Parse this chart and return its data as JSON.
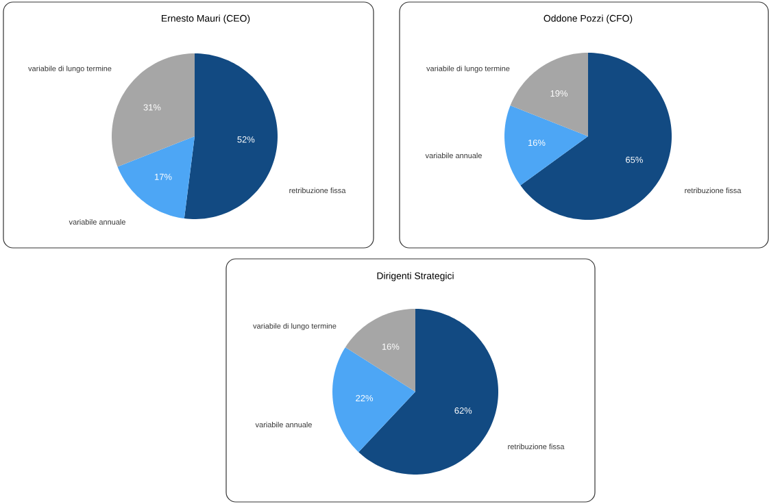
{
  "chart_data": [
    {
      "type": "pie",
      "title": "Ernesto Mauri (CEO)",
      "categories": [
        "retribuzione fissa",
        "variabile annuale",
        "variabile di lungo termine"
      ],
      "values": [
        52,
        17,
        31
      ],
      "colors": [
        "#124a82",
        "#4da6f5",
        "#a6a6a6"
      ],
      "value_labels": [
        "52%",
        "17%",
        "31%"
      ]
    },
    {
      "type": "pie",
      "title": "Oddone Pozzi (CFO)",
      "categories": [
        "retribuzione fissa",
        "variabile annuale",
        "variabile di lungo termine"
      ],
      "values": [
        65,
        16,
        19
      ],
      "colors": [
        "#124a82",
        "#4da6f5",
        "#a6a6a6"
      ],
      "value_labels": [
        "65%",
        "16%",
        "19%"
      ]
    },
    {
      "type": "pie",
      "title": "Dirigenti Strategici",
      "categories": [
        "retribuzione fissa",
        "variabile annuale",
        "variabile di lungo termine"
      ],
      "values": [
        62,
        22,
        16
      ],
      "colors": [
        "#124a82",
        "#4da6f5",
        "#a6a6a6"
      ],
      "value_labels": [
        "62%",
        "22%",
        "16%"
      ]
    }
  ]
}
